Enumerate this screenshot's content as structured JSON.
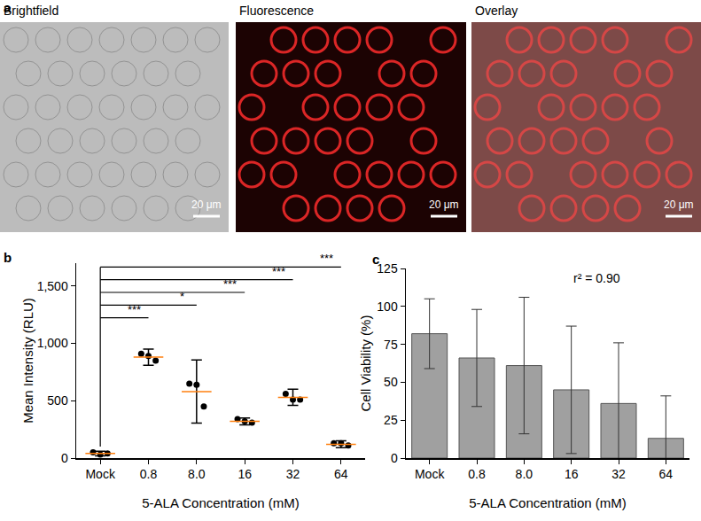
{
  "panel_a": {
    "panel_label": "a",
    "images": [
      {
        "title": "Brightfield",
        "scale_bar": "20 μm"
      },
      {
        "title": "Fluorescence",
        "scale_bar": "20 μm"
      },
      {
        "title": "Overlay",
        "scale_bar": "20 μm"
      }
    ]
  },
  "chart_data": [
    {
      "type": "dot_plot",
      "panel_label": "b",
      "x_label": "5-ALA Concentration (mM)",
      "y_label": "Mean Intensity (RLU)",
      "categories": [
        "Mock",
        "0.8",
        "8.0",
        "16",
        "32",
        "64"
      ],
      "values": [
        40,
        880,
        580,
        320,
        530,
        120
      ],
      "error": [
        20,
        70,
        275,
        30,
        70,
        30
      ],
      "points": [
        [
          50,
          30,
          40
        ],
        [
          910,
          890,
          850
        ],
        [
          650,
          640,
          450
        ],
        [
          340,
          320,
          310
        ],
        [
          560,
          510,
          510
        ],
        [
          130,
          130,
          110
        ]
      ],
      "color": "#000000",
      "ylim": [
        0,
        1700
      ],
      "yticks": [
        0,
        500,
        {
          "value": 1000,
          "label": "1,000"
        },
        {
          "value": 1500,
          "label": "1,500"
        }
      ],
      "significance": [
        {
          "from": "Mock",
          "to": "0.8",
          "label": "***"
        },
        {
          "from": "Mock",
          "to": "8.0",
          "label": "*"
        },
        {
          "from": "Mock",
          "to": "16",
          "label": "***"
        },
        {
          "from": "Mock",
          "to": "32",
          "label": "***"
        },
        {
          "from": "Mock",
          "to": "64",
          "label": "***"
        }
      ],
      "grid": false
    },
    {
      "type": "bar",
      "panel_label": "c",
      "x_label": "5-ALA Concentration (mM)",
      "y_label": "Cell Viability (%)",
      "categories": [
        "Mock",
        "0.8",
        "8.0",
        "16",
        "32",
        "64"
      ],
      "values": [
        82,
        66,
        61,
        45,
        36,
        13
      ],
      "error": [
        23,
        32,
        45,
        42,
        40,
        28
      ],
      "color": "#a0a0a0",
      "ylim": [
        0,
        125
      ],
      "yticks": [
        0,
        25,
        50,
        75,
        100,
        125
      ],
      "annotations": [
        "r² = 0.90"
      ],
      "grid": false
    }
  ]
}
